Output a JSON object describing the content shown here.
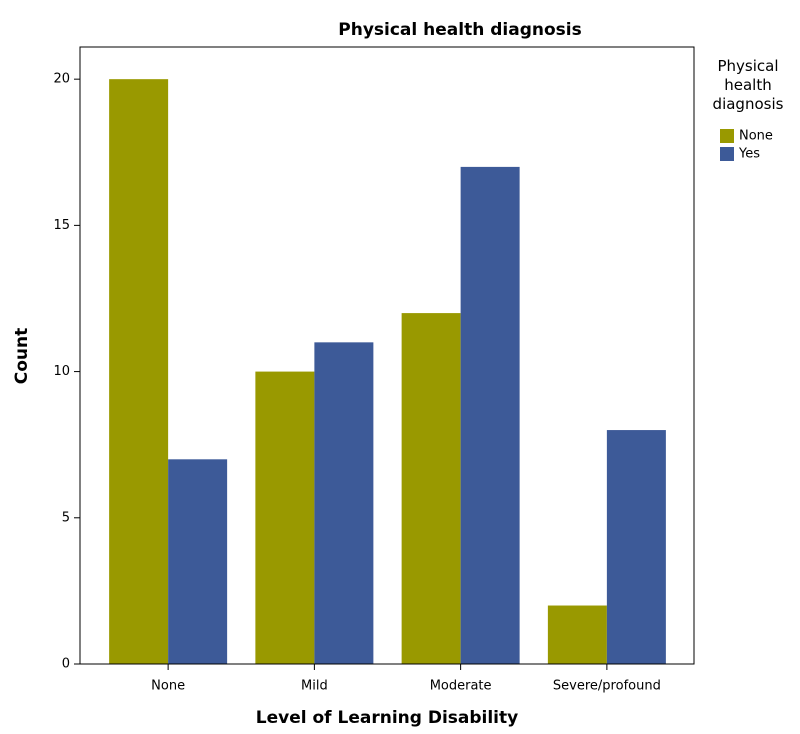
{
  "chart_data": {
    "type": "bar",
    "title": "Physical health diagnosis",
    "x_label": "Level of Learning Disability",
    "y_label": "Count",
    "categories": [
      "None",
      "Mild",
      "Moderate",
      "Severe/profound"
    ],
    "legend_title": "Physical health diagnosis",
    "series": [
      {
        "name": "None",
        "color": "#999900",
        "values": [
          20,
          10,
          12,
          2
        ]
      },
      {
        "name": "Yes",
        "color": "#3d5a98",
        "values": [
          7,
          11,
          17,
          8
        ]
      }
    ],
    "ylim": [
      0,
      21.1
    ],
    "yticks": [
      0,
      5,
      10,
      15,
      20
    ],
    "grid": false,
    "legend": "right"
  }
}
